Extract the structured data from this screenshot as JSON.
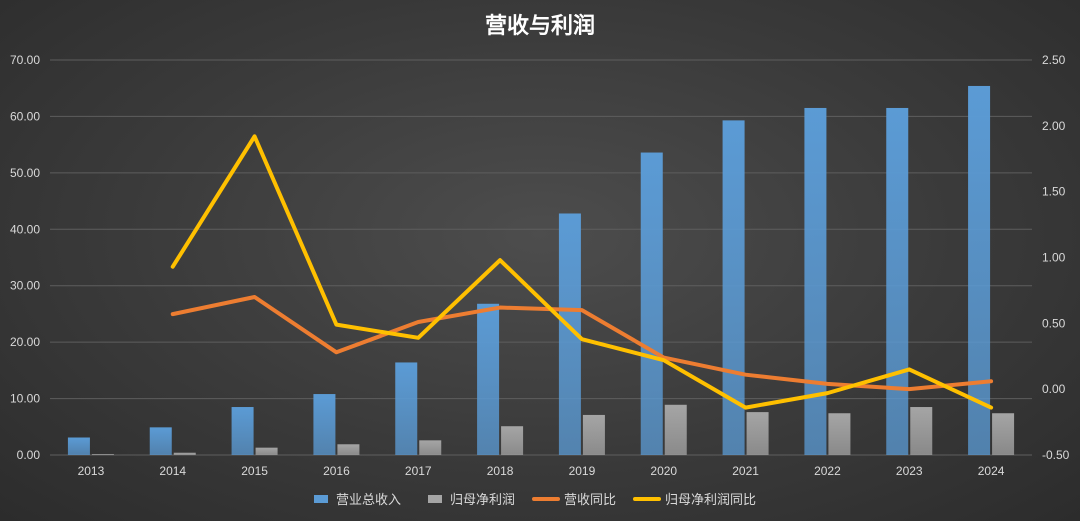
{
  "chart_data": {
    "type": "bar",
    "title": "营收与利润",
    "categories": [
      "2013",
      "2014",
      "2015",
      "2016",
      "2017",
      "2018",
      "2019",
      "2020",
      "2021",
      "2022",
      "2023",
      "2024"
    ],
    "y_left": {
      "min": 0,
      "max": 70,
      "step": 10,
      "tick_labels": [
        "0.00",
        "10.00",
        "20.00",
        "30.00",
        "40.00",
        "50.00",
        "60.00",
        "70.00"
      ]
    },
    "y_right": {
      "min": -0.5,
      "max": 2.5,
      "step": 0.5,
      "tick_labels": [
        "-0.50",
        "0.00",
        "0.50",
        "1.00",
        "1.50",
        "2.00",
        "2.50"
      ]
    },
    "grid": true,
    "legend_position": "bottom",
    "series": [
      {
        "name": "营业总收入",
        "type": "bar",
        "axis": "left",
        "color": "#5b9bd5",
        "values": [
          3.1,
          4.9,
          8.5,
          10.8,
          16.4,
          26.8,
          42.8,
          53.6,
          59.3,
          61.5,
          61.5,
          65.4
        ]
      },
      {
        "name": "归母净利润",
        "type": "bar",
        "axis": "left",
        "color": "#a5a5a5",
        "values": [
          0.15,
          0.4,
          1.3,
          1.9,
          2.6,
          5.1,
          7.1,
          8.9,
          7.6,
          7.4,
          8.5,
          7.4
        ]
      },
      {
        "name": "营收同比",
        "type": "line",
        "axis": "right",
        "color": "#ed7d31",
        "values": [
          null,
          0.57,
          0.7,
          0.28,
          0.51,
          0.62,
          0.6,
          0.24,
          0.11,
          0.04,
          0.0,
          0.06
        ]
      },
      {
        "name": "归母净利润同比",
        "type": "line",
        "axis": "right",
        "color": "#ffc000",
        "values": [
          null,
          0.93,
          1.92,
          0.49,
          0.39,
          0.98,
          0.38,
          0.22,
          -0.14,
          -0.03,
          0.15,
          -0.14
        ]
      }
    ]
  }
}
